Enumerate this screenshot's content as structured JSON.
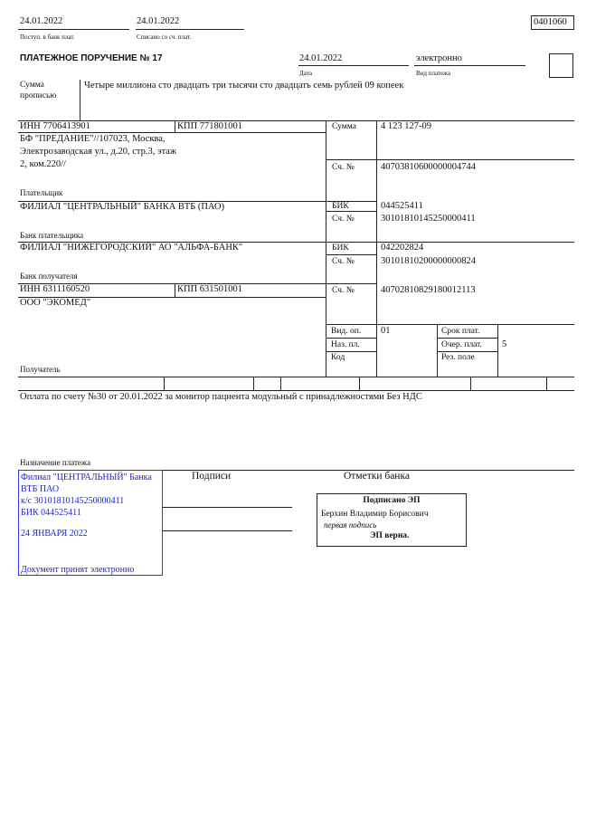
{
  "header": {
    "received_date": "24.01.2022",
    "received_label": "Поступ. в банк плат.",
    "debited_date": "24.01.2022",
    "debited_label": "Списано со сч. плат.",
    "form_code": "0401060"
  },
  "title": "ПЛАТЕЖНОЕ ПОРУЧЕНИЕ № 17",
  "date": {
    "value": "24.01.2022",
    "label": "Дата"
  },
  "payment_type": {
    "value": "электронно",
    "label": "Вид платежа"
  },
  "amount_words": {
    "label_line1": "Сумма",
    "label_line2": "прописью",
    "value": "Четыре миллиона сто двадцать три тысячи сто двадцать семь рублей 09 копеек"
  },
  "payer": {
    "inn": "ИНН 7706413901",
    "kpp": "КПП 771801001",
    "name_lines": [
      "БФ \"ПРЕДАНИЕ\"//107023, Москва,",
      "Электрозаводская ул., д.20, стр.3, этаж",
      "2, ком.220//"
    ],
    "label": "Плательщик",
    "amount_label": "Сумма",
    "amount": "4 123 127-09",
    "account_label": "Сч. №",
    "account": "40703810600000004744"
  },
  "payer_bank": {
    "name": "ФИЛИАЛ \"ЦЕНТРАЛЬНЫЙ\" БАНКА ВТБ (ПАО)",
    "label": "Банк плательщика",
    "bik_label": "БИК",
    "bik": "044525411",
    "account_label": "Сч. №",
    "account": "30101810145250000411"
  },
  "payee_bank": {
    "name": "ФИЛИАЛ \"НИЖЕГОРОДСКИЙ\" АО \"АЛЬФА-БАНК\"",
    "label": "Банк получателя",
    "bik_label": "БИК",
    "bik": "042202824",
    "account_label": "Сч. №",
    "account": "30101810200000000824"
  },
  "payee": {
    "inn": "ИНН 6311160520",
    "kpp": "КПП 631501001",
    "name": "ООО \"ЭКОМЕД\"",
    "label": "Получатель",
    "account_label": "Сч. №",
    "account": "40702810829180012113"
  },
  "codes": {
    "op_type_label": "Вид. оп.",
    "op_type": "01",
    "purpose_label": "Наз. пл.",
    "code_label": "Код",
    "term_label": "Срок плат.",
    "priority_label": "Очер. плат.",
    "priority": "5",
    "reserve_label": "Рез. поле"
  },
  "purpose": {
    "text": "Оплата по счету №30 от 20.01.2022 за монитор пациента модульный с принадлежностями Без НДС",
    "label": "Назначение платежа"
  },
  "bank_stamp": {
    "lines": [
      "Филиал \"ЦЕНТРАЛЬНЫЙ\" Банка",
      "ВТБ ПАО",
      "к/с 30101810145250000411",
      "БИК 044525411"
    ],
    "date": "24 ЯНВАРЯ 2022",
    "note": "Документ принят электронно",
    "color": "#2222dd"
  },
  "signatures_label": "Подписи",
  "bank_marks_label": "Отметки банка",
  "e_signature": {
    "title": "Подписано ЭП",
    "signer": "Берхин Владимир Борисович",
    "role": "первая подпись",
    "status": "ЭП верна."
  }
}
